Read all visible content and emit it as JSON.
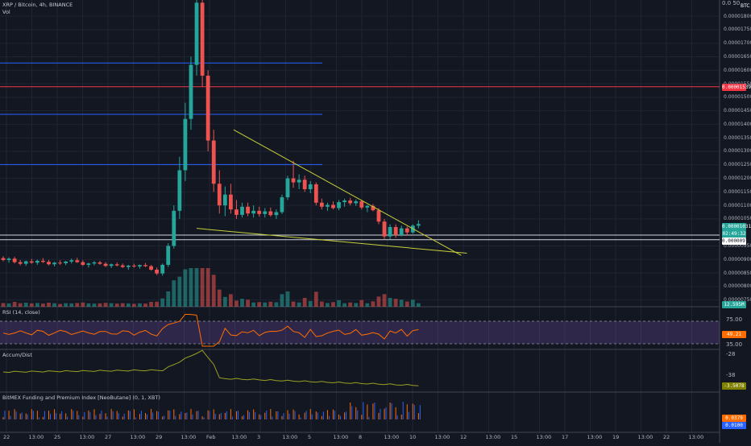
{
  "header": {
    "symbol_line": "XRP / Bitcoin, 4h, BINANCE",
    "vol_label": "Vol",
    "rsi_label": "RSI (14, close)",
    "accum_label": "Accum/Dist",
    "funding_label": "BitMEX Funding and Premium Index [NeoButane] (0, 1, XBT)"
  },
  "chart_data": [
    {
      "type": "candlestick",
      "title": "XRP / Bitcoin, 4h, BINANCE",
      "ylabel": "BTC",
      "ylim": [
        7.25e-06,
        1.86e-05
      ],
      "price_ticks": [
        "0.00001800",
        "0.00001750",
        "0.00001700",
        "0.00001650",
        "0.00001600",
        "0.00001550",
        "0.00001500",
        "0.00001450",
        "0.00001400",
        "0.00001350",
        "0.00001300",
        "0.00001250",
        "0.00001200",
        "0.00001150",
        "0.00001100",
        "0.00001050",
        "0.00000950",
        "0.00000900",
        "0.00000850",
        "0.00000800",
        "0.00000750"
      ],
      "top_tick_partial": "0.0  50",
      "axis_unit": "BTC",
      "x_ticks": [
        "22",
        "13:00",
        "25",
        "13:00",
        "27",
        "13:00",
        "29",
        "13:00",
        "Feb",
        "13:00",
        "3",
        "13:00",
        "5",
        "13:00",
        "8",
        "13:00",
        "10",
        "13:00",
        "12",
        "13:00",
        "15",
        "13:00",
        "17",
        "13:00",
        "19",
        "13:00",
        "22",
        "13:00"
      ],
      "price_labels": {
        "red_line": "0.00001539",
        "last": "0.00001031",
        "countdown": "02:49:32",
        "white_line": "0.00000973"
      },
      "horizontal_levels": [
        {
          "price": 1.627e-05,
          "color": "#2962ff"
        },
        {
          "price": 1.539e-05,
          "color": "#f23645"
        },
        {
          "price": 1.437e-05,
          "color": "#2962ff"
        },
        {
          "price": 1.251e-05,
          "color": "#2962ff"
        },
        {
          "price": 9.9e-06,
          "color": "#d1d4dc"
        },
        {
          "price": 9.73e-06,
          "color": "#d1d4dc"
        }
      ],
      "trendlines": [
        {
          "from": [
            40.5,
            1.38e-05
          ],
          "to": [
            80.5,
            9.15e-06
          ],
          "color": "#c9d13a"
        },
        {
          "from": [
            34.0,
            1.015e-05
          ],
          "to": [
            81.5,
            9.23e-06
          ],
          "color": "#c9d13a"
        }
      ],
      "candles": [
        {
          "o": 9.05e-06,
          "h": 9.12e-06,
          "l": 8.93e-06,
          "c": 8.98e-06
        },
        {
          "o": 8.98e-06,
          "h": 9.08e-06,
          "l": 8.88e-06,
          "c": 9.03e-06
        },
        {
          "o": 9.03e-06,
          "h": 9.1e-06,
          "l": 8.85e-06,
          "c": 8.9e-06
        },
        {
          "o": 8.9e-06,
          "h": 8.98e-06,
          "l": 8.78e-06,
          "c": 8.84e-06
        },
        {
          "o": 8.84e-06,
          "h": 8.96e-06,
          "l": 8.76e-06,
          "c": 8.93e-06
        },
        {
          "o": 8.93e-06,
          "h": 9.02e-06,
          "l": 8.84e-06,
          "c": 8.88e-06
        },
        {
          "o": 8.88e-06,
          "h": 8.99e-06,
          "l": 8.8e-06,
          "c": 8.95e-06
        },
        {
          "o": 8.95e-06,
          "h": 9.05e-06,
          "l": 8.87e-06,
          "c": 8.91e-06
        },
        {
          "o": 8.91e-06,
          "h": 8.98e-06,
          "l": 8.78e-06,
          "c": 8.82e-06
        },
        {
          "o": 8.82e-06,
          "h": 8.91e-06,
          "l": 8.74e-06,
          "c": 8.88e-06
        },
        {
          "o": 8.88e-06,
          "h": 8.97e-06,
          "l": 8.8e-06,
          "c": 8.86e-06
        },
        {
          "o": 8.86e-06,
          "h": 8.95e-06,
          "l": 8.79e-06,
          "c": 8.92e-06
        },
        {
          "o": 8.92e-06,
          "h": 9.03e-06,
          "l": 8.85e-06,
          "c": 8.97e-06
        },
        {
          "o": 8.97e-06,
          "h": 9.06e-06,
          "l": 8.87e-06,
          "c": 8.9e-06
        },
        {
          "o": 8.9e-06,
          "h": 8.97e-06,
          "l": 8.76e-06,
          "c": 8.8e-06
        },
        {
          "o": 8.8e-06,
          "h": 8.88e-06,
          "l": 8.7e-06,
          "c": 8.85e-06
        },
        {
          "o": 8.85e-06,
          "h": 8.94e-06,
          "l": 8.78e-06,
          "c": 8.89e-06
        },
        {
          "o": 8.89e-06,
          "h": 8.95e-06,
          "l": 8.8e-06,
          "c": 8.84e-06
        },
        {
          "o": 8.84e-06,
          "h": 8.9e-06,
          "l": 8.72e-06,
          "c": 8.76e-06
        },
        {
          "o": 8.76e-06,
          "h": 8.85e-06,
          "l": 8.68e-06,
          "c": 8.82e-06
        },
        {
          "o": 8.82e-06,
          "h": 8.89e-06,
          "l": 8.74e-06,
          "c": 8.78e-06
        },
        {
          "o": 8.78e-06,
          "h": 8.85e-06,
          "l": 8.68e-06,
          "c": 8.72e-06
        },
        {
          "o": 8.72e-06,
          "h": 8.8e-06,
          "l": 8.62e-06,
          "c": 8.77e-06
        },
        {
          "o": 8.77e-06,
          "h": 8.84e-06,
          "l": 8.7e-06,
          "c": 8.74e-06
        },
        {
          "o": 8.74e-06,
          "h": 8.81e-06,
          "l": 8.66e-06,
          "c": 8.79e-06
        },
        {
          "o": 8.79e-06,
          "h": 8.87e-06,
          "l": 8.72e-06,
          "c": 8.75e-06
        },
        {
          "o": 8.75e-06,
          "h": 8.8e-06,
          "l": 8.58e-06,
          "c": 8.62e-06
        },
        {
          "o": 8.62e-06,
          "h": 8.7e-06,
          "l": 8.42e-06,
          "c": 8.48e-06
        },
        {
          "o": 8.48e-06,
          "h": 8.85e-06,
          "l": 8.4e-06,
          "c": 8.8e-06
        },
        {
          "o": 8.8e-06,
          "h": 9.6e-06,
          "l": 8.72e-06,
          "c": 9.5e-06
        },
        {
          "o": 9.5e-06,
          "h": 1.1e-05,
          "l": 9.4e-06,
          "c": 1.08e-05
        },
        {
          "o": 1.08e-05,
          "h": 1.28e-05,
          "l": 1.05e-05,
          "c": 1.23e-05
        },
        {
          "o": 1.23e-05,
          "h": 1.48e-05,
          "l": 1.19e-05,
          "c": 1.42e-05
        },
        {
          "o": 1.42e-05,
          "h": 1.65e-05,
          "l": 1.38e-05,
          "c": 1.62e-05
        },
        {
          "o": 1.62e-05,
          "h": 1.87e-05,
          "l": 1.58e-05,
          "c": 1.85e-05
        },
        {
          "o": 1.85e-05,
          "h": 1.86e-05,
          "l": 1.54e-05,
          "c": 1.58e-05
        },
        {
          "o": 1.58e-05,
          "h": 1.6e-05,
          "l": 1.3e-05,
          "c": 1.34e-05
        },
        {
          "o": 1.34e-05,
          "h": 1.38e-05,
          "l": 1.15e-05,
          "c": 1.18e-05
        },
        {
          "o": 1.18e-05,
          "h": 1.23e-05,
          "l": 1.07e-05,
          "c": 1.1e-05
        },
        {
          "o": 1.1e-05,
          "h": 1.17e-05,
          "l": 1.06e-05,
          "c": 1.14e-05
        },
        {
          "o": 1.14e-05,
          "h": 1.18e-05,
          "l": 1.07e-05,
          "c": 1.085e-05
        },
        {
          "o": 1.085e-05,
          "h": 1.12e-05,
          "l": 1.05e-05,
          "c": 1.065e-05
        },
        {
          "o": 1.065e-05,
          "h": 1.11e-05,
          "l": 1.055e-05,
          "c": 1.095e-05
        },
        {
          "o": 1.095e-05,
          "h": 1.11e-05,
          "l": 1.06e-05,
          "c": 1.07e-05
        },
        {
          "o": 1.07e-05,
          "h": 1.1e-05,
          "l": 1.055e-05,
          "c": 1.08e-05
        },
        {
          "o": 1.08e-05,
          "h": 1.095e-05,
          "l": 1.058e-05,
          "c": 1.068e-05
        },
        {
          "o": 1.068e-05,
          "h": 1.09e-05,
          "l": 1.055e-05,
          "c": 1.078e-05
        },
        {
          "o": 1.078e-05,
          "h": 1.092e-05,
          "l": 1.058e-05,
          "c": 1.064e-05
        },
        {
          "o": 1.064e-05,
          "h": 1.085e-05,
          "l": 1.05e-05,
          "c": 1.075e-05
        },
        {
          "o": 1.075e-05,
          "h": 1.14e-05,
          "l": 1.068e-05,
          "c": 1.13e-05
        },
        {
          "o": 1.13e-05,
          "h": 1.21e-05,
          "l": 1.12e-05,
          "c": 1.2e-05
        },
        {
          "o": 1.2e-05,
          "h": 1.265e-05,
          "l": 1.165e-05,
          "c": 1.185e-05
        },
        {
          "o": 1.185e-05,
          "h": 1.215e-05,
          "l": 1.16e-05,
          "c": 1.195e-05
        },
        {
          "o": 1.195e-05,
          "h": 1.21e-05,
          "l": 1.15e-05,
          "c": 1.16e-05
        },
        {
          "o": 1.16e-05,
          "h": 1.19e-05,
          "l": 1.145e-05,
          "c": 1.178e-05
        },
        {
          "o": 1.178e-05,
          "h": 1.185e-05,
          "l": 1.1e-05,
          "c": 1.11e-05
        },
        {
          "o": 1.11e-05,
          "h": 1.125e-05,
          "l": 1.085e-05,
          "c": 1.095e-05
        },
        {
          "o": 1.095e-05,
          "h": 1.11e-05,
          "l": 1.08e-05,
          "c": 1.102e-05
        },
        {
          "o": 1.102e-05,
          "h": 1.115e-05,
          "l": 1.085e-05,
          "c": 1.09e-05
        },
        {
          "o": 1.09e-05,
          "h": 1.12e-05,
          "l": 1.082e-05,
          "c": 1.112e-05
        },
        {
          "o": 1.112e-05,
          "h": 1.125e-05,
          "l": 1.095e-05,
          "c": 1.118e-05
        },
        {
          "o": 1.118e-05,
          "h": 1.128e-05,
          "l": 1.1e-05,
          "c": 1.108e-05
        },
        {
          "o": 1.108e-05,
          "h": 1.122e-05,
          "l": 1.098e-05,
          "c": 1.115e-05
        },
        {
          "o": 1.115e-05,
          "h": 1.12e-05,
          "l": 1.085e-05,
          "c": 1.092e-05
        },
        {
          "o": 1.092e-05,
          "h": 1.102e-05,
          "l": 1.075e-05,
          "c": 1.098e-05
        },
        {
          "o": 1.098e-05,
          "h": 1.105e-05,
          "l": 1.078e-05,
          "c": 1.082e-05
        },
        {
          "o": 1.082e-05,
          "h": 1.09e-05,
          "l": 1.03e-05,
          "c": 1.04e-05
        },
        {
          "o": 1.04e-05,
          "h": 1.05e-05,
          "l": 9.75e-06,
          "c": 9.85e-06
        },
        {
          "o": 9.85e-06,
          "h": 1.03e-05,
          "l": 9.75e-06,
          "c": 1.02e-05
        },
        {
          "o": 1.02e-05,
          "h": 1.03e-05,
          "l": 9.8e-06,
          "c": 9.9e-06
        },
        {
          "o": 9.9e-06,
          "h": 1.025e-05,
          "l": 9.85e-06,
          "c": 1.015e-05
        },
        {
          "o": 1.015e-05,
          "h": 1.022e-05,
          "l": 9.9e-06,
          "c": 1e-05
        },
        {
          "o": 1e-05,
          "h": 1.03e-05,
          "l": 9.95e-06,
          "c": 1.025e-05
        },
        {
          "o": 1.025e-05,
          "h": 1.045e-05,
          "l": 1.015e-05,
          "c": 1.031e-05
        }
      ]
    },
    {
      "type": "bar",
      "title": "Vol",
      "value_label": "12.595M"
    },
    {
      "type": "line",
      "title": "RSI (14, close)",
      "band": [
        35,
        75
      ],
      "ticks": [
        "75.00",
        "35.00"
      ],
      "current_label": "49.21"
    },
    {
      "type": "line",
      "title": "Accum/Dist",
      "ticks": [
        "-28",
        "-38"
      ],
      "current_label": "-3.5078"
    },
    {
      "type": "bar",
      "title": "BitMEX Funding and Premium Index [NeoButane] (0, 1, XBT)",
      "labels": [
        "0.0379",
        "0.0100"
      ]
    }
  ]
}
